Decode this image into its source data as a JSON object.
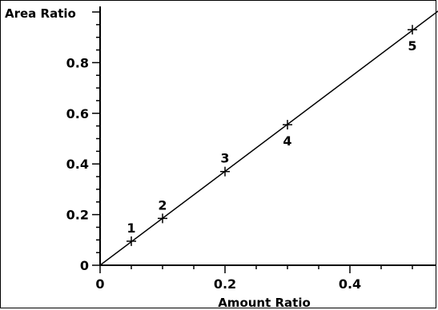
{
  "chart_data": {
    "type": "scatter",
    "xlabel": "Amount Ratio",
    "ylabel": "Area Ratio",
    "xlim": [
      0,
      0.55
    ],
    "ylim": [
      0,
      1.0
    ],
    "x_ticks": [
      "0",
      "0.2",
      "0.4"
    ],
    "y_ticks": [
      "0",
      "0.2",
      "0.4",
      "0.6",
      "0.8"
    ],
    "grid": false,
    "series": [
      {
        "points": [
          {
            "label": "1",
            "x": 0.05,
            "y": 0.095
          },
          {
            "label": "2",
            "x": 0.1,
            "y": 0.185
          },
          {
            "label": "3",
            "x": 0.2,
            "y": 0.37
          },
          {
            "label": "4",
            "x": 0.3,
            "y": 0.555
          },
          {
            "label": "5",
            "x": 0.5,
            "y": 0.93
          }
        ]
      }
    ],
    "fit_line": {
      "x": [
        0,
        0.55
      ],
      "y": [
        0,
        1.02
      ]
    }
  }
}
